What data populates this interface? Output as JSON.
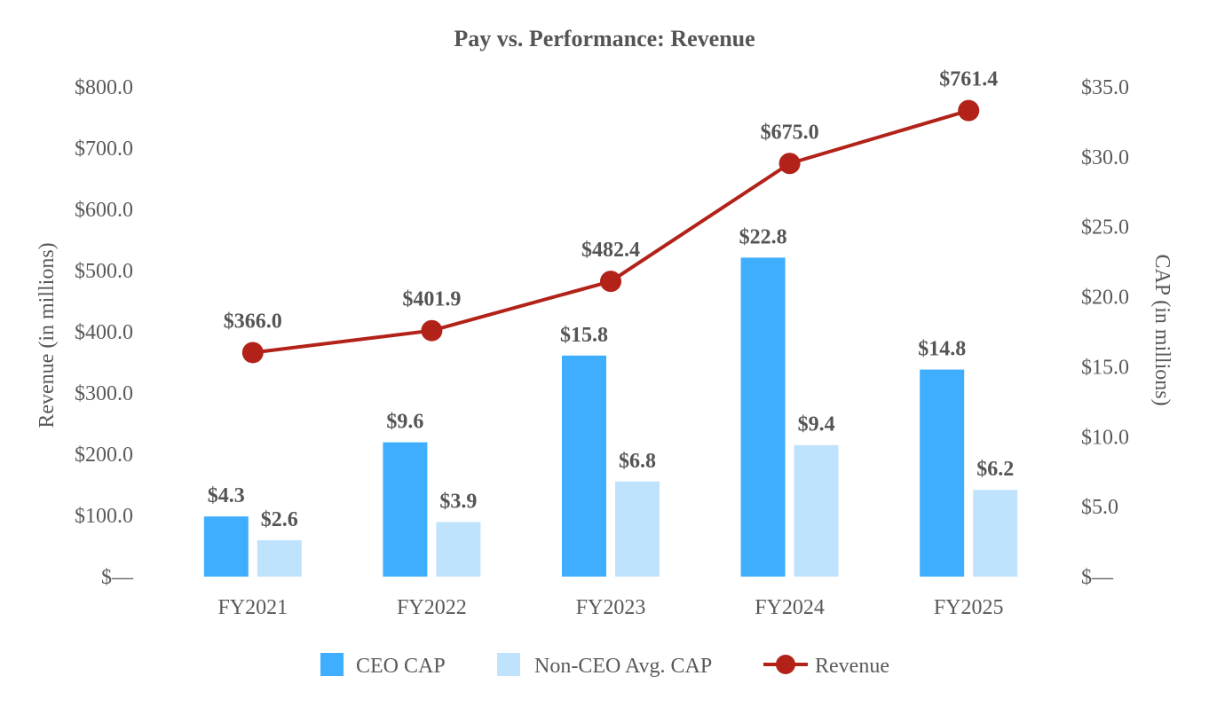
{
  "chart_data": {
    "type": "bar",
    "title": "Pay vs. Performance: Revenue",
    "categories": [
      "FY2021",
      "FY2022",
      "FY2023",
      "FY2024",
      "FY2025"
    ],
    "y_left": {
      "label": "Revenue (in millions)",
      "min": 0,
      "max": 800,
      "step": 100,
      "ticks": [
        "$—",
        "$100.0",
        "$200.0",
        "$300.0",
        "$400.0",
        "$500.0",
        "$600.0",
        "$700.0",
        "$800.0"
      ]
    },
    "y_right": {
      "label": "CAP (in millions)",
      "min": 0,
      "max": 35,
      "step": 5,
      "ticks": [
        "$—",
        "$5.0",
        "$10.0",
        "$15.0",
        "$20.0",
        "$25.0",
        "$30.0",
        "$35.0"
      ]
    },
    "series": [
      {
        "name": "CEO CAP",
        "kind": "bar",
        "axis": "right",
        "color": "#3FAEFF",
        "values": [
          4.3,
          9.6,
          15.8,
          22.8,
          14.8
        ],
        "labels": [
          "$4.3",
          "$9.6",
          "$15.8",
          "$22.8",
          "$14.8"
        ]
      },
      {
        "name": "Non-CEO Avg. CAP",
        "kind": "bar",
        "axis": "right",
        "color": "#BFE3FD",
        "values": [
          2.6,
          3.9,
          6.8,
          9.4,
          6.2
        ],
        "labels": [
          "$2.6",
          "$3.9",
          "$6.8",
          "$9.4",
          "$6.2"
        ]
      },
      {
        "name": "Revenue",
        "kind": "line",
        "axis": "left",
        "color": "#B22218",
        "values": [
          366.0,
          401.9,
          482.4,
          675.0,
          761.4
        ],
        "labels": [
          "$366.0",
          "$401.9",
          "$482.4",
          "$675.0",
          "$761.4"
        ]
      }
    ],
    "legend_position": "bottom",
    "grid": false
  }
}
